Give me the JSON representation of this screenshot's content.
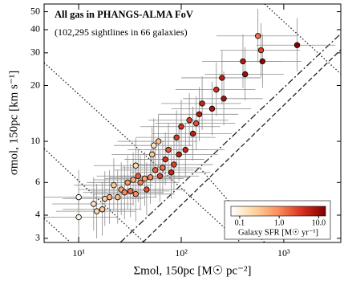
{
  "chart_data": {
    "type": "scatter",
    "title": "All gas in PHANGS-ALMA FoV",
    "subtitle": "(102,295 sightlines in 66 galaxies)",
    "x_label": "Σmol, 150pc [M☉ pc⁻²]",
    "y_label": "σmol, 150pc [km s⁻¹]",
    "log_x": true,
    "log_y": true,
    "xlim": [
      4.6,
      3600
    ],
    "ylim": [
      2.85,
      55
    ],
    "xticks": [
      {
        "value": 10,
        "label": "10¹"
      },
      {
        "value": 100,
        "label": "10²"
      },
      {
        "value": 1000,
        "label": "10³"
      }
    ],
    "yticks": [
      3,
      4,
      6,
      10,
      20,
      30,
      40,
      50
    ],
    "x": [
      10,
      10,
      14,
      15,
      17,
      18,
      20,
      22,
      24,
      26,
      28,
      30,
      32,
      34,
      36,
      36,
      38,
      40,
      44,
      46,
      50,
      52,
      54,
      56,
      60,
      62,
      66,
      70,
      75,
      80,
      85,
      90,
      95,
      100,
      110,
      120,
      130,
      140,
      150,
      160,
      200,
      220,
      250,
      260,
      400,
      420,
      560,
      600,
      620,
      1350
    ],
    "values": [
      5.0,
      3.9,
      4.6,
      4.2,
      4.3,
      4.9,
      5.0,
      5.8,
      5.0,
      5.5,
      5.3,
      6.0,
      5.4,
      6.2,
      5.2,
      7.4,
      6.5,
      6.0,
      6.3,
      5.5,
      6.4,
      8.5,
      9.5,
      7.0,
      10,
      6.5,
      7.2,
      8.0,
      9.0,
      6.8,
      7.5,
      10.5,
      8.5,
      12,
      9.0,
      13,
      11,
      12.5,
      14,
      16,
      15,
      19,
      22,
      17,
      27,
      23,
      37,
      31,
      27,
      33
    ],
    "sfr": [
      0.08,
      0.1,
      0.15,
      0.2,
      0.3,
      0.25,
      0.5,
      0.3,
      0.4,
      0.6,
      1.0,
      0.8,
      1.5,
      0.5,
      1.0,
      0.2,
      2.0,
      1.2,
      0.6,
      2.5,
      1.0,
      0.3,
      0.15,
      2.0,
      0.4,
      3.0,
      1.5,
      4.0,
      2.0,
      5.0,
      3.0,
      3.5,
      6.0,
      4.0,
      5.0,
      3.0,
      6.0,
      2.5,
      7.0,
      5.0,
      8.0,
      4.0,
      6.0,
      9.0,
      7.0,
      10,
      1.5,
      3.0,
      12,
      14
    ],
    "x_low": [
      4,
      4,
      5.5,
      6,
      7,
      7,
      8,
      9,
      10,
      10,
      11,
      12,
      13,
      14,
      14,
      14,
      15,
      16,
      18,
      18,
      20,
      21,
      22,
      22,
      24,
      25,
      26,
      28,
      30,
      32,
      34,
      36,
      38,
      40,
      44,
      48,
      52,
      56,
      60,
      64,
      80,
      88,
      100,
      104,
      160,
      170,
      220,
      240,
      250,
      540
    ],
    "x_high": [
      24,
      24,
      34,
      36,
      41,
      43,
      48,
      53,
      58,
      62,
      67,
      72,
      77,
      82,
      86,
      86,
      91,
      96,
      106,
      110,
      120,
      125,
      130,
      134,
      144,
      149,
      158,
      168,
      180,
      192,
      204,
      216,
      228,
      240,
      264,
      288,
      312,
      336,
      360,
      384,
      480,
      528,
      600,
      624,
      960,
      1000,
      1340,
      1440,
      1490,
      3200
    ],
    "y_low": [
      3.6,
      2.8,
      3.3,
      3.0,
      3.1,
      3.5,
      3.6,
      4.2,
      3.6,
      4.0,
      3.8,
      4.3,
      3.9,
      4.5,
      3.7,
      5.3,
      4.7,
      4.3,
      4.5,
      4.0,
      4.6,
      6.1,
      6.8,
      5.0,
      7.2,
      4.7,
      5.2,
      5.8,
      6.5,
      4.9,
      5.4,
      7.6,
      6.1,
      8.6,
      6.5,
      9.4,
      7.9,
      9.0,
      10,
      11.5,
      10.8,
      13.7,
      15.8,
      12.2,
      19.4,
      16.6,
      26.6,
      22.3,
      19.4,
      23.8
    ],
    "y_high": [
      7.0,
      5.5,
      6.4,
      5.9,
      6.0,
      6.9,
      7.0,
      8.1,
      7.0,
      7.7,
      7.4,
      8.4,
      7.6,
      8.7,
      7.3,
      10.4,
      9.1,
      8.4,
      8.8,
      7.7,
      9.0,
      11.9,
      13.3,
      9.8,
      14,
      9.1,
      10.1,
      11.2,
      12.6,
      9.5,
      10.5,
      14.7,
      11.9,
      16.8,
      12.6,
      18.2,
      15.4,
      17.5,
      19.6,
      22.4,
      21,
      26.6,
      30.8,
      23.8,
      37.8,
      32.2,
      51.8,
      43.4,
      37.8,
      46.2
    ],
    "colorbar_label": "Galaxy SFR [M☉ yr⁻¹]",
    "clim": [
      0.06,
      15
    ],
    "cticks": [
      0.1,
      {
        "value": 1,
        "label": "1.0"
      },
      {
        "value": 10,
        "label": "10.0"
      }
    ],
    "colormap": [
      "#ffffff",
      "#fdd49e",
      "#fc8d59",
      "#d7301f",
      "#7f0000"
    ],
    "errorbar_color": "#8c8c8c"
  }
}
